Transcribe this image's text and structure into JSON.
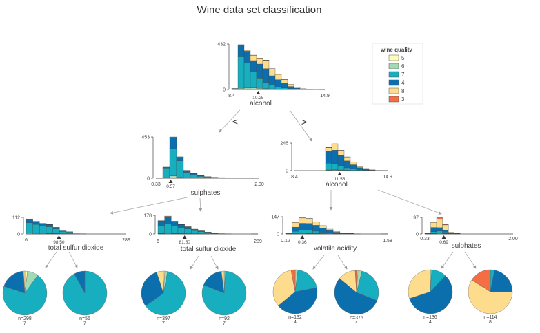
{
  "title": "Wine data set classification",
  "colors": {
    "5": "#fefebb",
    "6": "#a1dab4",
    "7": "#17aebf",
    "4": "#0c6fad",
    "8": "#fedc8e",
    "3": "#f46d43",
    "axis": "#444444",
    "edge": "#aaaaaa",
    "bar_edge": "#444444"
  },
  "legend": {
    "title": "wine quality",
    "classes": [
      "5",
      "6",
      "7",
      "4",
      "8",
      "3"
    ]
  },
  "edge_labels": {
    "le": "≤",
    "gt": ">"
  },
  "nodes": [
    {
      "id": "root",
      "feature": "alcohol",
      "threshold": "10.25",
      "split": 10.25,
      "xmin": 8.4,
      "xmax": 14.9,
      "xmin_label": "8.4",
      "xmax_label": "14.9",
      "ymax": 432,
      "ymax_label": "432",
      "bin_count": 15,
      "bins": [
        {
          "5": 0,
          "6": 0,
          "7": 8,
          "4": 2,
          "8": 0,
          "3": 0
        },
        {
          "5": 3,
          "6": 8,
          "7": 300,
          "4": 110,
          "8": 5,
          "3": 0
        },
        {
          "5": 4,
          "6": 10,
          "7": 240,
          "4": 110,
          "8": 8,
          "3": 0
        },
        {
          "5": 5,
          "6": 10,
          "7": 150,
          "4": 110,
          "8": 50,
          "3": 2
        },
        {
          "5": 4,
          "6": 8,
          "7": 90,
          "4": 140,
          "8": 50,
          "3": 3
        },
        {
          "5": 3,
          "6": 5,
          "7": 60,
          "4": 130,
          "8": 80,
          "3": 2
        },
        {
          "5": 2,
          "6": 4,
          "7": 35,
          "4": 90,
          "8": 65,
          "3": 2
        },
        {
          "5": 1,
          "6": 3,
          "7": 20,
          "4": 70,
          "8": 50,
          "3": 1
        },
        {
          "5": 1,
          "6": 2,
          "7": 12,
          "4": 45,
          "8": 35,
          "3": 1
        },
        {
          "5": 0,
          "6": 1,
          "7": 6,
          "4": 22,
          "8": 22,
          "3": 0
        },
        {
          "5": 0,
          "6": 0,
          "7": 3,
          "4": 10,
          "8": 8,
          "3": 0
        },
        {
          "5": 0,
          "6": 0,
          "7": 1,
          "4": 4,
          "8": 3,
          "3": 0
        },
        {
          "5": 0,
          "6": 0,
          "7": 0,
          "4": 1,
          "8": 1,
          "3": 0
        },
        {
          "5": 0,
          "6": 0,
          "7": 0,
          "4": 0,
          "8": 0,
          "3": 0
        },
        {
          "5": 0,
          "6": 0,
          "7": 0,
          "4": 0,
          "8": 1,
          "3": 0
        }
      ]
    },
    {
      "id": "L",
      "feature": "sulphates",
      "threshold": "0.57",
      "split": 0.57,
      "xmin": 0.33,
      "xmax": 2.0,
      "xmin_label": "0.33",
      "xmax_label": "2.00",
      "ymax": 453,
      "ymax_label": "453",
      "bin_count": 15,
      "bins": [
        {
          "5": 0,
          "6": 0,
          "7": 2,
          "4": 1,
          "8": 0,
          "3": 0
        },
        {
          "5": 2,
          "6": 10,
          "7": 100,
          "4": 15,
          "8": 2,
          "3": 0
        },
        {
          "5": 4,
          "6": 20,
          "7": 300,
          "4": 125,
          "8": 4,
          "3": 0
        },
        {
          "5": 3,
          "6": 8,
          "7": 180,
          "4": 40,
          "8": 4,
          "3": 0
        },
        {
          "5": 1,
          "6": 3,
          "7": 60,
          "4": 20,
          "8": 2,
          "3": 0
        },
        {
          "5": 1,
          "6": 2,
          "7": 35,
          "4": 12,
          "8": 1,
          "3": 0
        },
        {
          "5": 0,
          "6": 1,
          "7": 20,
          "4": 6,
          "8": 1,
          "3": 0
        },
        {
          "5": 0,
          "6": 1,
          "7": 12,
          "4": 4,
          "8": 0,
          "3": 0
        },
        {
          "5": 0,
          "6": 0,
          "7": 8,
          "4": 2,
          "8": 0,
          "3": 0
        },
        {
          "5": 0,
          "6": 0,
          "7": 6,
          "4": 1,
          "8": 0,
          "3": 0
        },
        {
          "5": 0,
          "6": 0,
          "7": 4,
          "4": 1,
          "8": 0,
          "3": 0
        },
        {
          "5": 0,
          "6": 0,
          "7": 2,
          "4": 0,
          "8": 0,
          "3": 0
        },
        {
          "5": 0,
          "6": 0,
          "7": 2,
          "4": 0,
          "8": 0,
          "3": 0
        },
        {
          "5": 0,
          "6": 0,
          "7": 1,
          "4": 0,
          "8": 0,
          "3": 0
        },
        {
          "5": 0,
          "6": 0,
          "7": 1,
          "4": 0,
          "8": 0,
          "3": 0
        }
      ]
    },
    {
      "id": "R",
      "feature": "alcohol",
      "threshold": "11.55",
      "split": 11.55,
      "xmin": 8.4,
      "xmax": 14.9,
      "xmin_label": "8.4",
      "xmax_label": "14.9",
      "ymax": 246,
      "ymax_label": "246",
      "bin_count": 15,
      "bins": [
        {
          "5": 0,
          "6": 0,
          "7": 0,
          "4": 0,
          "8": 0,
          "3": 0
        },
        {
          "5": 0,
          "6": 0,
          "7": 0,
          "4": 0,
          "8": 0,
          "3": 0
        },
        {
          "5": 0,
          "6": 0,
          "7": 0,
          "4": 0,
          "8": 0,
          "3": 0
        },
        {
          "5": 0,
          "6": 0,
          "7": 0,
          "4": 0,
          "8": 0,
          "3": 0
        },
        {
          "5": 0,
          "6": 0,
          "7": 0,
          "4": 0,
          "8": 0,
          "3": 0
        },
        {
          "5": 2,
          "6": 4,
          "7": 60,
          "4": 110,
          "8": 30,
          "3": 2
        },
        {
          "5": 3,
          "6": 5,
          "7": 55,
          "4": 120,
          "8": 55,
          "3": 2
        },
        {
          "5": 2,
          "6": 4,
          "7": 40,
          "4": 90,
          "8": 45,
          "3": 1
        },
        {
          "5": 1,
          "6": 2,
          "7": 22,
          "4": 62,
          "8": 35,
          "3": 1
        },
        {
          "5": 1,
          "6": 1,
          "7": 12,
          "4": 38,
          "8": 25,
          "3": 0
        },
        {
          "5": 0,
          "6": 1,
          "7": 6,
          "4": 20,
          "8": 14,
          "3": 0
        },
        {
          "5": 0,
          "6": 0,
          "7": 3,
          "4": 8,
          "8": 8,
          "3": 0
        },
        {
          "5": 0,
          "6": 0,
          "7": 1,
          "4": 3,
          "8": 3,
          "3": 0
        },
        {
          "5": 0,
          "6": 0,
          "7": 0,
          "4": 1,
          "8": 1,
          "3": 0
        },
        {
          "5": 0,
          "6": 0,
          "7": 0,
          "4": 0,
          "8": 1,
          "3": 0
        }
      ]
    },
    {
      "id": "LL",
      "feature": "total sulfur dioxide",
      "threshold": "98.50",
      "split": 98.5,
      "xmin": 6,
      "xmax": 289,
      "xmin_label": "6",
      "xmax_label": "289",
      "ymax": 112,
      "ymax_label": "112",
      "bin_count": 15,
      "bins": [
        {
          "5": 1,
          "6": 5,
          "7": 70,
          "4": 25,
          "8": 1,
          "3": 0
        },
        {
          "5": 1,
          "6": 4,
          "7": 60,
          "4": 20,
          "8": 1,
          "3": 0
        },
        {
          "5": 1,
          "6": 4,
          "7": 50,
          "4": 16,
          "8": 1,
          "3": 0
        },
        {
          "5": 1,
          "6": 3,
          "7": 45,
          "4": 14,
          "8": 1,
          "3": 0
        },
        {
          "5": 1,
          "6": 2,
          "7": 32,
          "4": 10,
          "8": 0,
          "3": 0
        },
        {
          "5": 0,
          "6": 1,
          "7": 16,
          "4": 4,
          "8": 0,
          "3": 0
        },
        {
          "5": 0,
          "6": 1,
          "7": 12,
          "4": 2,
          "8": 0,
          "3": 0
        },
        {
          "5": 0,
          "6": 0,
          "7": 2,
          "4": 0,
          "8": 0,
          "3": 0
        },
        {
          "5": 0,
          "6": 0,
          "7": 1,
          "4": 0,
          "8": 0,
          "3": 0
        },
        {
          "5": 0,
          "6": 0,
          "7": 0,
          "4": 0,
          "8": 0,
          "3": 0
        },
        {
          "5": 0,
          "6": 0,
          "7": 0,
          "4": 0,
          "8": 0,
          "3": 0
        },
        {
          "5": 0,
          "6": 0,
          "7": 0,
          "4": 0,
          "8": 0,
          "3": 0
        },
        {
          "5": 0,
          "6": 0,
          "7": 0,
          "4": 0,
          "8": 0,
          "3": 0
        },
        {
          "5": 0,
          "6": 0,
          "7": 0,
          "4": 0,
          "8": 0,
          "3": 0
        },
        {
          "5": 0,
          "6": 0,
          "7": 0,
          "4": 0,
          "8": 0,
          "3": 0
        }
      ]
    },
    {
      "id": "LR",
      "feature": "total sulfur dioxide",
      "threshold": "81.50",
      "split": 81.5,
      "xmin": 6,
      "xmax": 289,
      "xmin_label": "6",
      "xmax_label": "289",
      "ymax": 178,
      "ymax_label": "178",
      "bin_count": 15,
      "bins": [
        {
          "5": 1,
          "6": 4,
          "7": 70,
          "4": 50,
          "8": 3,
          "3": 0
        },
        {
          "5": 2,
          "6": 5,
          "7": 90,
          "4": 70,
          "8": 4,
          "3": 0
        },
        {
          "5": 1,
          "6": 4,
          "7": 70,
          "4": 45,
          "8": 3,
          "3": 0
        },
        {
          "5": 1,
          "6": 3,
          "7": 55,
          "4": 30,
          "8": 2,
          "3": 0
        },
        {
          "5": 1,
          "6": 2,
          "7": 45,
          "4": 20,
          "8": 2,
          "3": 0
        },
        {
          "5": 0,
          "6": 1,
          "7": 32,
          "4": 12,
          "8": 1,
          "3": 0
        },
        {
          "5": 0,
          "6": 1,
          "7": 22,
          "4": 6,
          "8": 1,
          "3": 0
        },
        {
          "5": 0,
          "6": 0,
          "7": 14,
          "4": 4,
          "8": 0,
          "3": 0
        },
        {
          "5": 0,
          "6": 0,
          "7": 6,
          "4": 2,
          "8": 0,
          "3": 0
        },
        {
          "5": 0,
          "6": 0,
          "7": 2,
          "4": 1,
          "8": 0,
          "3": 0
        },
        {
          "5": 0,
          "6": 0,
          "7": 1,
          "4": 0,
          "8": 0,
          "3": 0
        },
        {
          "5": 0,
          "6": 0,
          "7": 0,
          "4": 0,
          "8": 0,
          "3": 0
        },
        {
          "5": 0,
          "6": 0,
          "7": 0,
          "4": 0,
          "8": 0,
          "3": 0
        },
        {
          "5": 0,
          "6": 0,
          "7": 0,
          "4": 0,
          "8": 0,
          "3": 0
        },
        {
          "5": 0,
          "6": 0,
          "7": 1,
          "4": 0,
          "8": 0,
          "3": 0
        }
      ]
    },
    {
      "id": "RL",
      "feature": "volatile acidity",
      "threshold": "0.36",
      "split": 0.36,
      "xmin": 0.12,
      "xmax": 1.58,
      "xmin_label": "0.12",
      "xmax_label": "1.58",
      "ymax": 147,
      "ymax_label": "147",
      "bin_count": 15,
      "bins": [
        {
          "5": 0,
          "6": 0,
          "7": 2,
          "4": 3,
          "8": 2,
          "3": 0
        },
        {
          "5": 1,
          "6": 2,
          "7": 20,
          "4": 35,
          "8": 40,
          "3": 1
        },
        {
          "5": 2,
          "6": 4,
          "7": 25,
          "4": 60,
          "8": 45,
          "3": 2
        },
        {
          "5": 2,
          "6": 3,
          "7": 30,
          "4": 55,
          "8": 40,
          "3": 2
        },
        {
          "5": 1,
          "6": 3,
          "7": 20,
          "4": 50,
          "8": 30,
          "3": 1
        },
        {
          "5": 1,
          "6": 2,
          "7": 12,
          "4": 35,
          "8": 20,
          "3": 1
        },
        {
          "5": 0,
          "6": 1,
          "7": 8,
          "4": 20,
          "8": 12,
          "3": 0
        },
        {
          "5": 0,
          "6": 1,
          "7": 4,
          "4": 10,
          "8": 6,
          "3": 0
        },
        {
          "5": 0,
          "6": 0,
          "7": 2,
          "4": 4,
          "8": 2,
          "3": 0
        },
        {
          "5": 0,
          "6": 0,
          "7": 1,
          "4": 2,
          "8": 1,
          "3": 0
        },
        {
          "5": 0,
          "6": 0,
          "7": 0,
          "4": 1,
          "8": 0,
          "3": 0
        },
        {
          "5": 0,
          "6": 0,
          "7": 0,
          "4": 0,
          "8": 0,
          "3": 0
        },
        {
          "5": 0,
          "6": 0,
          "7": 0,
          "4": 0,
          "8": 0,
          "3": 0
        },
        {
          "5": 0,
          "6": 0,
          "7": 0,
          "4": 0,
          "8": 0,
          "3": 0
        },
        {
          "5": 0,
          "6": 0,
          "7": 0,
          "4": 1,
          "8": 0,
          "3": 0
        }
      ]
    },
    {
      "id": "RR",
      "feature": "sulphates",
      "threshold": "0.69",
      "split": 0.69,
      "xmin": 0.33,
      "xmax": 2.0,
      "xmin_label": "0.33",
      "xmax_label": "2.00",
      "ymax": 97,
      "ymax_label": "97",
      "bin_count": 15,
      "bins": [
        {
          "5": 0,
          "6": 0,
          "7": 2,
          "4": 4,
          "8": 1,
          "3": 0
        },
        {
          "5": 1,
          "6": 2,
          "7": 10,
          "4": 25,
          "8": 30,
          "3": 4
        },
        {
          "5": 2,
          "6": 3,
          "7": 12,
          "4": 20,
          "8": 50,
          "3": 10
        },
        {
          "5": 1,
          "6": 2,
          "7": 8,
          "4": 12,
          "8": 30,
          "3": 3
        },
        {
          "5": 0,
          "6": 1,
          "7": 2,
          "4": 3,
          "8": 4,
          "3": 0
        },
        {
          "5": 0,
          "6": 0,
          "7": 1,
          "4": 1,
          "8": 1,
          "3": 0
        },
        {
          "5": 0,
          "6": 0,
          "7": 0,
          "4": 0,
          "8": 0,
          "3": 0
        },
        {
          "5": 0,
          "6": 0,
          "7": 0,
          "4": 0,
          "8": 0,
          "3": 0
        },
        {
          "5": 0,
          "6": 0,
          "7": 0,
          "4": 0,
          "8": 0,
          "3": 0
        },
        {
          "5": 0,
          "6": 0,
          "7": 0,
          "4": 0,
          "8": 0,
          "3": 0
        },
        {
          "5": 0,
          "6": 0,
          "7": 0,
          "4": 0,
          "8": 0,
          "3": 0
        },
        {
          "5": 0,
          "6": 0,
          "7": 0,
          "4": 0,
          "8": 0,
          "3": 0
        },
        {
          "5": 0,
          "6": 0,
          "7": 0,
          "4": 0,
          "8": 0,
          "3": 0
        },
        {
          "5": 0,
          "6": 0,
          "7": 0,
          "4": 0,
          "8": 0,
          "3": 0
        },
        {
          "5": 0,
          "6": 0,
          "7": 0,
          "4": 0,
          "8": 0,
          "3": 0
        }
      ]
    }
  ],
  "leaves": [
    {
      "id": "leaf1",
      "n_label": "n=298",
      "class_label": "7",
      "fractions": {
        "5": 0.02,
        "6": 0.08,
        "7": 0.7,
        "4": 0.19,
        "8": 0.01,
        "3": 0.0
      }
    },
    {
      "id": "leaf2",
      "n_label": "n=55",
      "class_label": "7",
      "fractions": {
        "5": 0.0,
        "6": 0.0,
        "7": 0.92,
        "4": 0.08,
        "8": 0.0,
        "3": 0.0
      }
    },
    {
      "id": "leaf3",
      "n_label": "n=397",
      "class_label": "7",
      "fractions": {
        "5": 0.01,
        "6": 0.02,
        "7": 0.62,
        "4": 0.3,
        "8": 0.05,
        "3": 0.0
      }
    },
    {
      "id": "leaf4",
      "n_label": "n=92",
      "class_label": "7",
      "fractions": {
        "5": 0.0,
        "6": 0.01,
        "7": 0.8,
        "4": 0.17,
        "8": 0.02,
        "3": 0.0
      }
    },
    {
      "id": "leaf5",
      "n_label": "n=132",
      "class_label": "4",
      "fractions": {
        "5": 0.0,
        "6": 0.02,
        "7": 0.2,
        "4": 0.42,
        "8": 0.33,
        "3": 0.03
      }
    },
    {
      "id": "leaf6",
      "n_label": "n=375",
      "class_label": "4",
      "fractions": {
        "5": 0.01,
        "6": 0.03,
        "7": 0.27,
        "4": 0.55,
        "8": 0.13,
        "3": 0.01
      }
    },
    {
      "id": "leaf7",
      "n_label": "n=136",
      "class_label": "4",
      "fractions": {
        "5": 0.0,
        "6": 0.01,
        "7": 0.11,
        "4": 0.58,
        "8": 0.3,
        "3": 0.0
      }
    },
    {
      "id": "leaf8",
      "n_label": "n=114",
      "class_label": "8",
      "fractions": {
        "5": 0.0,
        "6": 0.0,
        "7": 0.03,
        "4": 0.22,
        "8": 0.59,
        "3": 0.16
      }
    }
  ]
}
